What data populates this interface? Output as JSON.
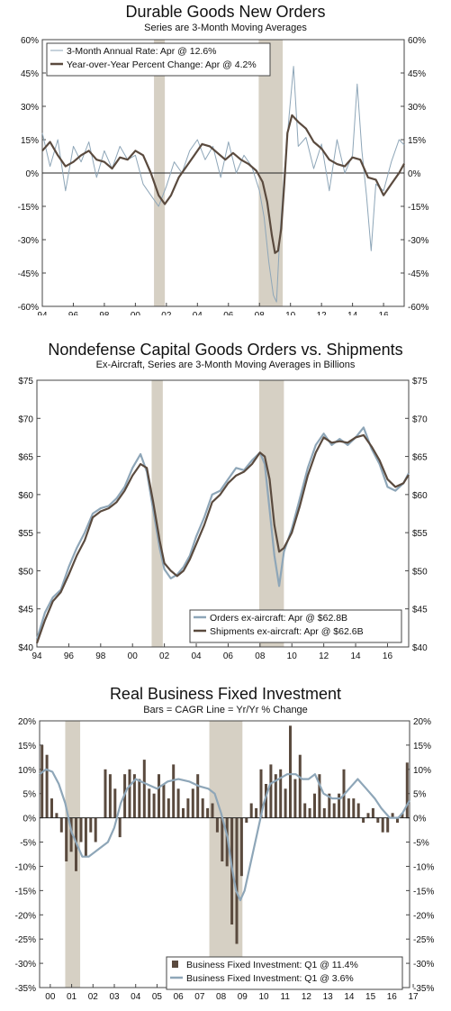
{
  "charts": [
    {
      "title": "Durable Goods New Orders",
      "subtitle": "Series are 3-Month Moving Averages",
      "yticks": [
        "60%",
        "45%",
        "30%",
        "15%",
        "0%",
        "-15%",
        "-30%",
        "-45%",
        "-60%"
      ],
      "xticks": [
        "94",
        "96",
        "98",
        "00",
        "02",
        "04",
        "06",
        "08",
        "10",
        "12",
        "14",
        "16"
      ],
      "legend": [
        "3-Month Annual Rate: Apr @ 12.6%",
        "Year-over-Year Percent Change: Apr @ 4.2%"
      ]
    },
    {
      "title": "Nondefense Capital Goods Orders vs. Shipments",
      "subtitle": "Ex-Aircraft, Series are 3-Month Moving Averages in Billions",
      "yticks": [
        "$75",
        "$70",
        "$65",
        "$60",
        "$55",
        "$50",
        "$45",
        "$40"
      ],
      "xticks": [
        "94",
        "96",
        "98",
        "00",
        "02",
        "04",
        "06",
        "08",
        "10",
        "12",
        "14",
        "16"
      ],
      "legend": [
        "Orders ex-aircraft: Apr @ $62.8B",
        "Shipments ex-aircraft: Apr @ $62.6B"
      ]
    },
    {
      "title": "Real Business Fixed Investment",
      "subtitle": "Bars = CAGR     Line = Yr/Yr % Change",
      "yticks": [
        "20%",
        "15%",
        "10%",
        "5%",
        "0%",
        "-5%",
        "-10%",
        "-15%",
        "-20%",
        "-25%",
        "-30%",
        "-35%"
      ],
      "xticks": [
        "00",
        "01",
        "02",
        "03",
        "04",
        "05",
        "06",
        "07",
        "08",
        "09",
        "10",
        "11",
        "12",
        "13",
        "14",
        "15",
        "16",
        "17"
      ],
      "legend": [
        "Business Fixed Investment: Q1 @ 11.4%",
        "Business Fixed Investment: Q1 @ 3.6%"
      ]
    }
  ],
  "chart_data": [
    {
      "type": "line",
      "title": "Durable Goods New Orders",
      "subtitle": "Series are 3-Month Moving Averages",
      "ylim": [
        -60,
        60
      ],
      "xlim": [
        1994,
        2017.33
      ],
      "recessions": [
        [
          2001.2,
          2001.9
        ],
        [
          2007.95,
          2009.5
        ]
      ],
      "series": [
        {
          "name": "3-Month Annual Rate: Apr @ 12.6%",
          "color": "#8ea6b8",
          "x": [
            1994.0,
            1994.5,
            1995.0,
            1995.5,
            1996.0,
            1996.5,
            1997.0,
            1997.5,
            1998.0,
            1998.5,
            1999.0,
            1999.5,
            2000.0,
            2000.5,
            2001.0,
            2001.5,
            2002.0,
            2002.5,
            2003.0,
            2003.5,
            2004.0,
            2004.5,
            2005.0,
            2005.5,
            2006.0,
            2006.5,
            2007.0,
            2007.5,
            2008.0,
            2008.3,
            2008.6,
            2008.9,
            2009.1,
            2009.3,
            2009.6,
            2009.9,
            2010.2,
            2010.5,
            2011.0,
            2011.5,
            2012.0,
            2012.5,
            2013.0,
            2013.5,
            2014.0,
            2014.3,
            2014.6,
            2014.9,
            2015.2,
            2015.5,
            2016.0,
            2016.5,
            2017.0,
            2017.33
          ],
          "y": [
            18,
            3,
            15,
            -8,
            12,
            5,
            14,
            -2,
            10,
            2,
            12,
            6,
            8,
            -5,
            -10,
            -15,
            -6,
            5,
            0,
            10,
            15,
            6,
            12,
            -2,
            14,
            0,
            8,
            3,
            -8,
            -20,
            -40,
            -55,
            -58,
            -30,
            0,
            25,
            48,
            12,
            16,
            2,
            13,
            -8,
            15,
            0,
            8,
            40,
            10,
            -10,
            -35,
            -5,
            -8,
            5,
            15,
            12.6
          ]
        },
        {
          "name": "Year-over-Year Percent Change: Apr @ 4.2%",
          "color": "#5a4a3e",
          "x": [
            1994.0,
            1994.5,
            1995.0,
            1995.5,
            1996.0,
            1996.5,
            1997.0,
            1997.5,
            1998.0,
            1998.5,
            1999.0,
            1999.5,
            2000.0,
            2000.5,
            2001.0,
            2001.5,
            2001.9,
            2002.3,
            2002.8,
            2003.3,
            2003.8,
            2004.3,
            2004.8,
            2005.3,
            2005.8,
            2006.3,
            2006.8,
            2007.3,
            2007.8,
            2008.2,
            2008.5,
            2008.8,
            2009.0,
            2009.2,
            2009.4,
            2009.6,
            2009.8,
            2010.1,
            2010.5,
            2011.0,
            2011.5,
            2012.0,
            2012.5,
            2013.0,
            2013.5,
            2014.0,
            2014.5,
            2015.0,
            2015.5,
            2016.0,
            2016.5,
            2017.0,
            2017.33
          ],
          "y": [
            10,
            14,
            8,
            3,
            5,
            8,
            10,
            6,
            5,
            2,
            7,
            6,
            10,
            8,
            0,
            -10,
            -14,
            -10,
            -2,
            3,
            8,
            13,
            12,
            9,
            6,
            9,
            6,
            4,
            1,
            -4,
            -13,
            -28,
            -36,
            -35,
            -25,
            -5,
            18,
            26,
            23,
            20,
            14,
            11,
            6,
            4,
            3,
            7,
            6,
            -2,
            -3,
            -10,
            -5,
            0,
            4.2
          ]
        }
      ]
    },
    {
      "type": "line",
      "title": "Nondefense Capital Goods Orders vs. Shipments",
      "subtitle": "Ex-Aircraft, Series are 3-Month Moving Averages in Billions",
      "ylim": [
        40,
        75
      ],
      "xlim": [
        1994,
        2017.33
      ],
      "recessions": [
        [
          2001.2,
          2001.9
        ],
        [
          2007.95,
          2009.5
        ]
      ],
      "series": [
        {
          "name": "Orders ex-aircraft: Apr @ $62.8B",
          "color": "#8ea6b8",
          "x": [
            1994.0,
            1994.5,
            1995.0,
            1995.5,
            1996.0,
            1996.5,
            1997.0,
            1997.5,
            1998.0,
            1998.5,
            1999.0,
            1999.5,
            2000.0,
            2000.5,
            2000.9,
            2001.3,
            2001.7,
            2002.0,
            2002.4,
            2002.8,
            2003.2,
            2003.6,
            2004.0,
            2004.5,
            2005.0,
            2005.5,
            2006.0,
            2006.5,
            2007.0,
            2007.5,
            2008.0,
            2008.3,
            2008.6,
            2008.9,
            2009.2,
            2009.5,
            2010.0,
            2010.5,
            2011.0,
            2011.5,
            2012.0,
            2012.5,
            2013.0,
            2013.5,
            2014.0,
            2014.5,
            2015.0,
            2015.5,
            2016.0,
            2016.5,
            2017.0,
            2017.33
          ],
          "y": [
            41,
            44.5,
            46.5,
            47.5,
            50.5,
            53,
            55,
            57.5,
            58.2,
            58.5,
            59.5,
            61,
            63.5,
            65.3,
            63,
            58,
            53,
            50.2,
            49,
            49.5,
            50.5,
            52,
            54.5,
            57,
            60,
            60.5,
            62,
            63.5,
            63.2,
            64.5,
            65.5,
            64,
            58,
            52,
            48,
            52.5,
            55.5,
            59.5,
            63.5,
            66.5,
            68,
            66.5,
            67.3,
            66.5,
            67.5,
            68.8,
            66,
            64,
            61,
            60.5,
            61.5,
            62.8
          ]
        },
        {
          "name": "Shipments ex-aircraft: Apr @ $62.6B",
          "color": "#5a4a3e",
          "x": [
            1994.0,
            1994.5,
            1995.0,
            1995.5,
            1996.0,
            1996.5,
            1997.0,
            1997.5,
            1998.0,
            1998.5,
            1999.0,
            1999.5,
            2000.0,
            2000.5,
            2000.9,
            2001.3,
            2001.7,
            2002.0,
            2002.4,
            2002.8,
            2003.2,
            2003.6,
            2004.0,
            2004.5,
            2005.0,
            2005.5,
            2006.0,
            2006.5,
            2007.0,
            2007.5,
            2008.0,
            2008.3,
            2008.6,
            2008.9,
            2009.2,
            2009.5,
            2010.0,
            2010.5,
            2011.0,
            2011.5,
            2012.0,
            2012.5,
            2013.0,
            2013.5,
            2014.0,
            2014.5,
            2015.0,
            2015.5,
            2016.0,
            2016.5,
            2017.0,
            2017.33
          ],
          "y": [
            40.5,
            43.5,
            46,
            47.2,
            49.5,
            52,
            54,
            57,
            57.8,
            58.2,
            59,
            60.5,
            62.5,
            64,
            63.5,
            59,
            54,
            51,
            50,
            49.3,
            50,
            51.5,
            53.5,
            56,
            59,
            60,
            61.5,
            62.5,
            63,
            64,
            65.5,
            65,
            62,
            56,
            52.5,
            53,
            55,
            58.5,
            62.5,
            65.5,
            67.5,
            66.8,
            67,
            66.8,
            67.5,
            67.8,
            66.3,
            64.5,
            62,
            61,
            61.5,
            62.6
          ]
        }
      ]
    },
    {
      "type": "bar",
      "title": "Real Business Fixed Investment",
      "subtitle": "Bars = CAGR     Line = Yr/Yr % Change",
      "ylim": [
        -35,
        20
      ],
      "xlim": [
        2000,
        2017.33
      ],
      "recessions": [
        [
          2001.2,
          2001.9
        ],
        [
          2007.95,
          2009.5
        ]
      ],
      "bar_series": {
        "name": "Business Fixed Investment: Q1 @ 11.4%",
        "color": "#5a4a3e",
        "values": [
          15,
          13,
          4,
          1,
          -3,
          -9,
          -7,
          -11,
          -5,
          -8,
          -3,
          -5,
          0,
          10,
          9,
          6,
          -4,
          9,
          10,
          9,
          8,
          12,
          6,
          5,
          9,
          7,
          4,
          11,
          6,
          2,
          4,
          6,
          9,
          4,
          2,
          3,
          -3,
          -9,
          -10,
          -22,
          -26,
          -12,
          -1,
          3,
          2,
          10,
          7,
          11,
          9,
          10,
          6,
          19,
          8,
          13,
          3,
          2,
          5,
          9,
          2,
          5,
          3,
          5,
          10,
          4,
          4,
          3,
          -1,
          1,
          2,
          -1,
          -3,
          -3,
          1,
          -1,
          1,
          11.4
        ]
      },
      "line_series": {
        "name": "Business Fixed Investment: Q1 @ 3.6%",
        "color": "#8ea6b8",
        "x": [
          2000.0,
          2000.3,
          2000.6,
          2000.9,
          2001.2,
          2001.5,
          2001.8,
          2002.0,
          2002.3,
          2002.6,
          2002.9,
          2003.2,
          2003.5,
          2003.8,
          2004.1,
          2004.5,
          2005.0,
          2005.5,
          2006.0,
          2006.5,
          2007.0,
          2007.5,
          2007.9,
          2008.2,
          2008.5,
          2008.8,
          2009.0,
          2009.2,
          2009.4,
          2009.6,
          2009.9,
          2010.2,
          2010.5,
          2010.8,
          2011.2,
          2011.6,
          2012.0,
          2012.3,
          2012.6,
          2012.9,
          2013.3,
          2013.7,
          2014.1,
          2014.5,
          2014.9,
          2015.3,
          2015.7,
          2016.0,
          2016.4,
          2016.8,
          2017.0,
          2017.33
        ],
        "y": [
          9,
          10,
          9.5,
          7,
          3,
          -3,
          -6,
          -8,
          -8,
          -7,
          -6,
          -5,
          -2,
          3,
          6,
          8,
          7,
          6,
          7.5,
          8,
          7.5,
          6.5,
          6,
          5,
          1,
          -4,
          -10,
          -15,
          -17,
          -15,
          -9,
          -3,
          3,
          7,
          8,
          9,
          9,
          8,
          8,
          9,
          5,
          4,
          4,
          6,
          8,
          6,
          4,
          2,
          0,
          0,
          1,
          3.6
        ]
      }
    }
  ]
}
